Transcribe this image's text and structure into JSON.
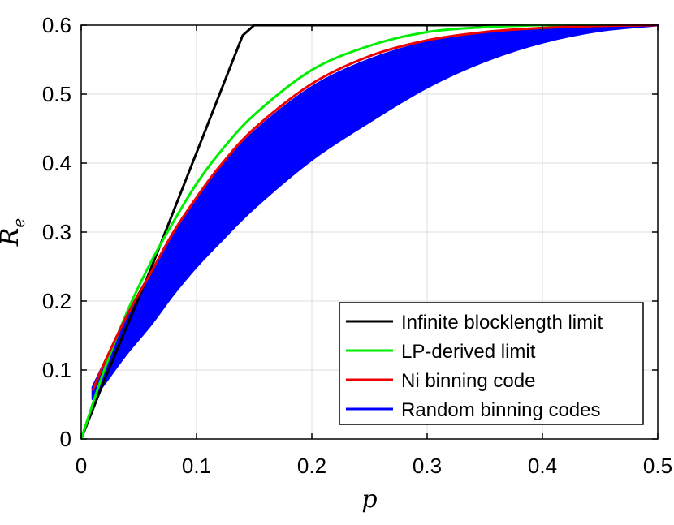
{
  "chart_data": {
    "type": "line",
    "title": "",
    "xlabel": "p",
    "ylabel": "R",
    "ylabel_subscript": "e",
    "xlim": [
      0,
      0.5
    ],
    "ylim": [
      0,
      0.6
    ],
    "xticks": [
      "0",
      "0.1",
      "0.2",
      "0.3",
      "0.4",
      "0.5"
    ],
    "yticks": [
      "0",
      "0.1",
      "0.2",
      "0.3",
      "0.4",
      "0.5",
      "0.6"
    ],
    "grid": true,
    "legend_position": "bottom-right",
    "series": [
      {
        "name": "Infinite blocklength limit",
        "color": "#000000",
        "style": "line",
        "x": [
          0,
          0.02,
          0.04,
          0.06,
          0.08,
          0.1,
          0.12,
          0.14,
          0.15,
          0.2,
          0.3,
          0.4,
          0.5
        ],
        "y": [
          0,
          0.085,
          0.165,
          0.245,
          0.33,
          0.415,
          0.5,
          0.585,
          0.6,
          0.6,
          0.6,
          0.6,
          0.6
        ]
      },
      {
        "name": "LP-derived limit",
        "color": "#00ee00",
        "style": "line",
        "x": [
          0,
          0.02,
          0.04,
          0.06,
          0.08,
          0.1,
          0.12,
          0.15,
          0.2,
          0.25,
          0.3,
          0.35,
          0.4,
          0.45,
          0.5
        ],
        "y": [
          0,
          0.1,
          0.185,
          0.255,
          0.315,
          0.37,
          0.415,
          0.47,
          0.535,
          0.57,
          0.59,
          0.597,
          0.6,
          0.6,
          0.6
        ]
      },
      {
        "name": "Ni binning code",
        "color": "#ee0000",
        "style": "line",
        "x": [
          0.01,
          0.02,
          0.04,
          0.06,
          0.08,
          0.1,
          0.12,
          0.15,
          0.2,
          0.25,
          0.3,
          0.35,
          0.4,
          0.45,
          0.5
        ],
        "y": [
          0.07,
          0.11,
          0.18,
          0.24,
          0.3,
          0.35,
          0.395,
          0.45,
          0.515,
          0.555,
          0.578,
          0.59,
          0.596,
          0.599,
          0.6
        ]
      },
      {
        "name": "Random binning codes",
        "color": "#0000ff",
        "style": "band",
        "x": [
          0.01,
          0.02,
          0.04,
          0.06,
          0.08,
          0.1,
          0.12,
          0.15,
          0.2,
          0.25,
          0.3,
          0.35,
          0.4,
          0.45,
          0.5
        ],
        "y_upper": [
          0.075,
          0.11,
          0.18,
          0.24,
          0.295,
          0.345,
          0.39,
          0.445,
          0.51,
          0.55,
          0.575,
          0.588,
          0.595,
          0.599,
          0.6
        ],
        "y_lower": [
          0.058,
          0.08,
          0.125,
          0.165,
          0.21,
          0.25,
          0.285,
          0.335,
          0.405,
          0.46,
          0.51,
          0.548,
          0.575,
          0.592,
          0.6
        ]
      }
    ]
  }
}
